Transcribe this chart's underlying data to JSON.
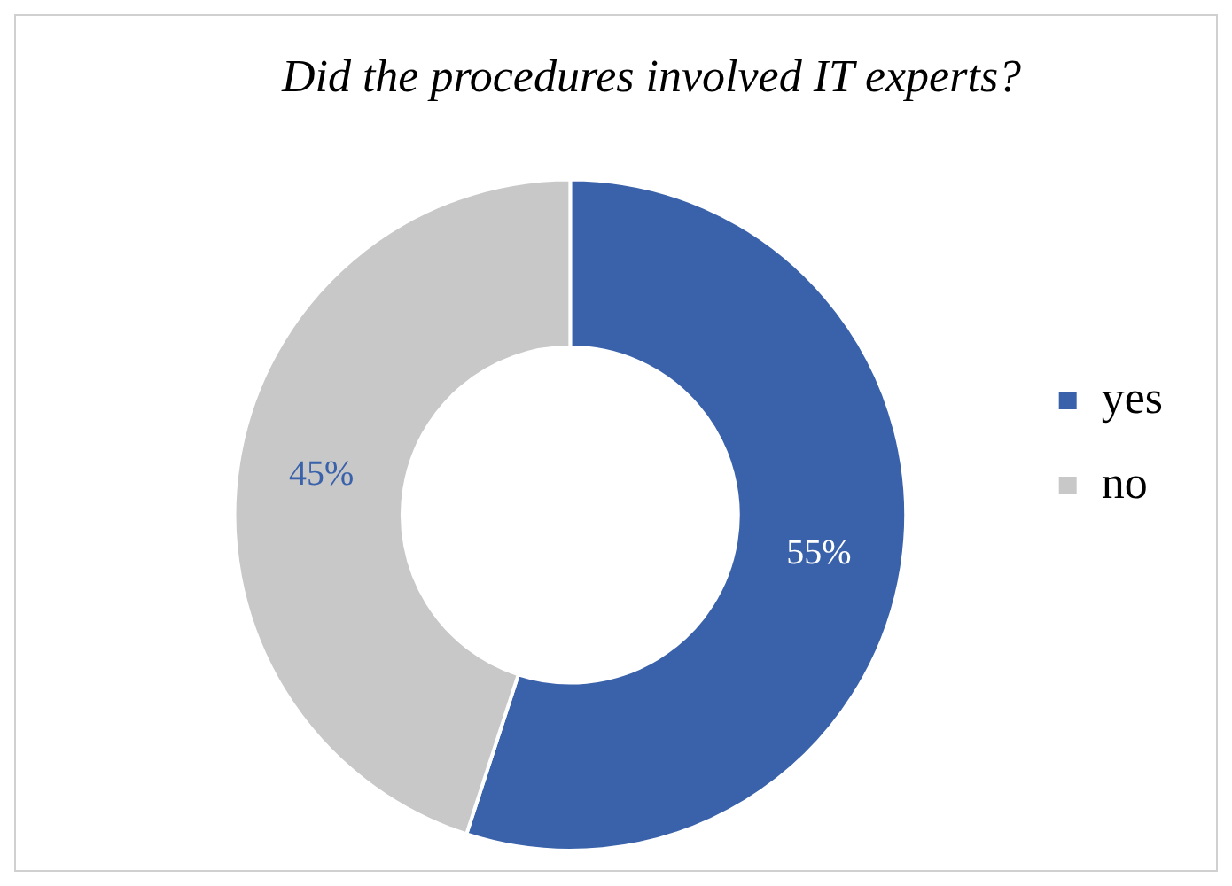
{
  "chart_data": {
    "type": "donut",
    "title": "Did the procedures involved IT experts?",
    "categories": [
      "yes",
      "no"
    ],
    "values": [
      55,
      45
    ],
    "colors": [
      "#3a62ab",
      "#c8c8c8"
    ],
    "value_labels": [
      "55%",
      "45%"
    ],
    "legend": "right"
  }
}
